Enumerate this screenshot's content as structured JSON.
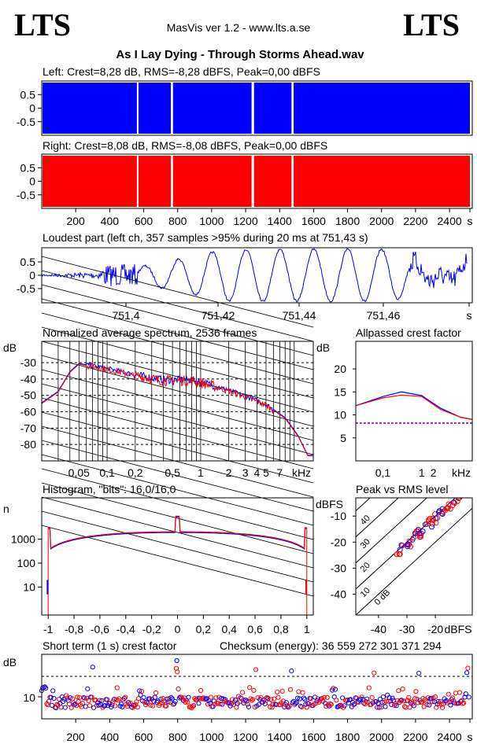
{
  "header": {
    "logo_left": "LTS",
    "logo_right": "LTS",
    "app_title": "MasVis ver 1.2 - www.lts.a.se",
    "file_title": "As I Lay Dying - Through Storms Ahead.wav"
  },
  "colors": {
    "left": "#0000ff",
    "right": "#ff0000",
    "grid": "#000000"
  },
  "chart_data": [
    {
      "id": "left",
      "type": "area",
      "title": "Left: Crest=8,28 dB, RMS=-8,28 dBFS, Peak=0,00 dBFS",
      "ylim": [
        -1,
        1
      ],
      "yticks": [
        "0.5",
        "0",
        "-0.5"
      ],
      "xlim": [
        0,
        2520
      ],
      "segments": [
        [
          0,
          560
        ],
        [
          565,
          760
        ],
        [
          768,
          1235
        ],
        [
          1245,
          1470
        ],
        [
          1478,
          2520
        ]
      ]
    },
    {
      "id": "right",
      "type": "area",
      "title": "Right: Crest=8,08 dB, RMS=-8,08 dBFS, Peak=0,00 dBFS",
      "ylim": [
        -1,
        1
      ],
      "yticks": [
        "0.5",
        "0",
        "-0.5"
      ],
      "xlim": [
        0,
        2520
      ],
      "xticks": [
        "200",
        "400",
        "600",
        "800",
        "1000",
        "1200",
        "1400",
        "1600",
        "1800",
        "2000",
        "2200",
        "2400",
        "s"
      ],
      "segments": [
        [
          0,
          560
        ],
        [
          565,
          760
        ],
        [
          768,
          1235
        ],
        [
          1245,
          1470
        ],
        [
          1478,
          2520
        ]
      ]
    },
    {
      "id": "loudest",
      "type": "line",
      "title": "Loudest part (left  ch, 357 samples >95% during 20 ms at 751,43 s)",
      "yticks": [
        "0.5",
        "0",
        "-0.5"
      ],
      "xticks": [
        "751,4",
        "751,42",
        "751,44",
        "751,46",
        "s"
      ],
      "xlim": [
        751.386,
        751.476
      ]
    },
    {
      "id": "spectrum",
      "type": "line",
      "title": "Normalized average spectrum, 2536 frames",
      "ylabel": "dB",
      "yticks": [
        "-30",
        "-40",
        "-50",
        "-60",
        "-70",
        "-80"
      ],
      "xticks": [
        "0,05",
        "0,1",
        "0,2",
        "0,5",
        "1",
        "2",
        "3",
        "4",
        "5",
        "7",
        "kHz"
      ],
      "ylim": [
        -90,
        -17
      ],
      "points": [
        [
          0.02,
          -55
        ],
        [
          0.03,
          -48
        ],
        [
          0.04,
          -36
        ],
        [
          0.05,
          -31
        ],
        [
          0.08,
          -33
        ],
        [
          0.12,
          -35
        ],
        [
          0.2,
          -38
        ],
        [
          0.4,
          -41
        ],
        [
          0.8,
          -41
        ],
        [
          1.5,
          -45
        ],
        [
          3,
          -51
        ],
        [
          5,
          -56
        ],
        [
          8,
          -64
        ],
        [
          11,
          -75
        ],
        [
          14,
          -87
        ]
      ]
    },
    {
      "id": "allpass",
      "type": "line",
      "title": "Allpassed crest factor",
      "ylabel": "dB",
      "yticks": [
        "20",
        "15",
        "10",
        "5"
      ],
      "xticks": [
        "0,1",
        "1",
        "2",
        "kHz"
      ],
      "ylim": [
        0,
        26
      ],
      "series": [
        {
          "x": [
            0.02,
            0.1,
            0.3,
            1,
            3,
            10,
            20
          ],
          "left": [
            12,
            14,
            15,
            14.2,
            11.5,
            9.5,
            9
          ],
          "right": [
            12,
            13.7,
            14.3,
            14,
            11.2,
            9.5,
            9
          ]
        },
        {
          "threshold": 8.2
        }
      ]
    },
    {
      "id": "histogram",
      "type": "line",
      "title": "Histogram, \"bits\": 16,0/16,0",
      "ylabel": "n",
      "yticks": [
        "1000",
        "100",
        "10"
      ],
      "xticks": [
        "-1",
        "-0,8",
        "-0,6",
        "-0,4",
        "-0,2",
        "0",
        "0,2",
        "0,4",
        "0,6",
        "0,8",
        "1"
      ],
      "xlim": [
        -1.05,
        1.05
      ]
    },
    {
      "id": "peakrms",
      "type": "scatter",
      "title": "Peak vs RMS level",
      "ylabel": "dBFS",
      "xlabel": "dBFS",
      "yticks": [
        "-10",
        "-20",
        "-30",
        "-40"
      ],
      "xticks": [
        "-40",
        "-30",
        "-20"
      ],
      "diag_labels": [
        "40",
        "30",
        "20",
        "10",
        "0 dB"
      ],
      "xlim": [
        -48,
        -7
      ],
      "ylim": [
        -48,
        -3
      ]
    },
    {
      "id": "crest",
      "type": "scatter",
      "title": "Short term (1 s) crest factor",
      "annotation": "Checksum (energy):  36 559 272 301 371 294",
      "ylabel": "dB",
      "yticks": [
        "10"
      ],
      "xticks": [
        "200",
        "400",
        "600",
        "800",
        "1000",
        "1200",
        "1400",
        "1600",
        "1800",
        "2000",
        "2200",
        "2400",
        "s"
      ],
      "xlim": [
        0,
        2520
      ]
    }
  ]
}
